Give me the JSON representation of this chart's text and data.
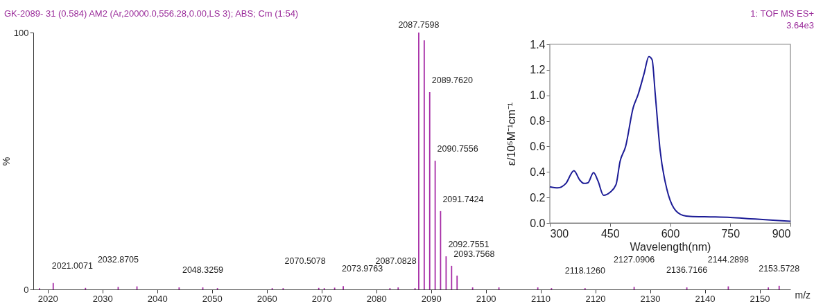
{
  "chart_data": [
    {
      "type": "bar",
      "title": "GK-2089- 31 (0.584) AM2 (Ar,20000.0,556.28,0.00,LS 3); ABS; Cm (1:54)",
      "xlabel": "m/z",
      "ylabel": "%",
      "color": "#a62ca6",
      "x": [
        2018.5,
        2021.0071,
        2026.9,
        2032.8705,
        2036.3,
        2044.0,
        2048.3259,
        2051.0,
        2061.0,
        2063.0,
        2069.5,
        2070.5078,
        2072.4,
        2073.9763,
        2082.5,
        2084.0,
        2087.0828,
        2087.7598,
        2088.76,
        2089.762,
        2090.7556,
        2091.7424,
        2092.7551,
        2093.7568,
        2094.76,
        2097.6,
        2102.4,
        2109.5,
        2112.0,
        2118.126,
        2127.0906,
        2136.7166,
        2144.2898,
        2151.6,
        2153.5728
      ],
      "values": [
        0.5,
        2.5,
        0.6,
        1.0,
        1.2,
        0.8,
        0.8,
        0.5,
        0.5,
        0.5,
        0.6,
        0.5,
        0.7,
        1.3,
        0.5,
        0.8,
        0.5,
        100,
        97.0,
        76.8,
        50.1,
        30.5,
        12.9,
        9.2,
        5.4,
        0.8,
        0.8,
        0.8,
        0.5,
        0.5,
        1.0,
        0.8,
        1.2,
        0.8,
        1.4
      ],
      "xlim": [
        2018,
        2155
      ],
      "xticks": [
        2020,
        2030,
        2040,
        2050,
        2060,
        2070,
        2080,
        2090,
        2100,
        2110,
        2120,
        2130,
        2140,
        2150
      ],
      "ylim": [
        0,
        100
      ],
      "yticks": [
        0,
        100
      ],
      "grid": false,
      "annotations": [
        "1: TOF MS ES+",
        "3.64e3",
        {
          "text": "2021.0071",
          "x": 2021.0071,
          "y": 2.5
        },
        {
          "text": "2032.8705",
          "x": 2032.8705,
          "y": 1.0
        },
        {
          "text": "2048.3259",
          "x": 2048.3259,
          "y": 0.8
        },
        {
          "text": "2070.5078",
          "x": 2070.5078,
          "y": 0.5
        },
        {
          "text": "2073.9763",
          "x": 2073.9763,
          "y": 1.3
        },
        {
          "text": "2087.0828",
          "x": 2087.0828,
          "y": 0.5
        },
        {
          "text": "2087.7598",
          "x": 2087.7598,
          "y": 100
        },
        {
          "text": "2089.7620",
          "x": 2089.762,
          "y": 76.8
        },
        {
          "text": "2090.7556",
          "x": 2090.7556,
          "y": 50.1
        },
        {
          "text": "2091.7424",
          "x": 2091.7424,
          "y": 30.5
        },
        {
          "text": "2092.7551",
          "x": 2092.7551,
          "y": 12.9
        },
        {
          "text": "2093.7568",
          "x": 2093.7568,
          "y": 9.2
        },
        {
          "text": "2118.1260",
          "x": 2118.126,
          "y": 0.5
        },
        {
          "text": "2127.0906",
          "x": 2127.0906,
          "y": 1.0
        },
        {
          "text": "2136.7166",
          "x": 2136.7166,
          "y": 0.8
        },
        {
          "text": "2144.2898",
          "x": 2144.2898,
          "y": 1.2
        },
        {
          "text": "2153.5728",
          "x": 2153.5728,
          "y": 1.4
        }
      ]
    },
    {
      "type": "line",
      "xlabel": "Wavelength(nm)",
      "ylabel": "ε/10⁵M⁻¹cm⁻¹",
      "grid": false,
      "series": [
        {
          "color": "#1c1c96",
          "x": [
            300,
            320,
            340,
            360,
            375,
            385,
            395,
            409,
            420,
            434,
            450,
            465,
            475,
            489,
            508,
            520,
            535,
            547,
            555,
            563,
            575,
            592,
            609,
            632,
            650,
            700,
            750,
            800,
            850,
            900
          ],
          "values": [
            0.284,
            0.275,
            0.31,
            0.41,
            0.335,
            0.31,
            0.315,
            0.395,
            0.33,
            0.217,
            0.24,
            0.3,
            0.48,
            0.6,
            0.905,
            1.005,
            1.17,
            1.304,
            1.28,
            1.005,
            0.57,
            0.263,
            0.118,
            0.06,
            0.052,
            0.048,
            0.043,
            0.033,
            0.023,
            0.014
          ]
        }
      ],
      "xlim": [
        300,
        900
      ],
      "xticks": [
        300,
        450,
        600,
        750,
        900
      ],
      "ylim": [
        0,
        1.4
      ],
      "yticks": [
        {
          "value": 0,
          "label": "0.0"
        },
        {
          "value": 0.2,
          "label": "0.2"
        },
        {
          "value": 0.4,
          "label": "0.4"
        },
        {
          "value": 0.6,
          "label": "0.6"
        },
        {
          "value": 0.8,
          "label": "0.8"
        },
        {
          "value": 1.0,
          "label": "1.0"
        },
        {
          "value": 1.2,
          "label": "1.2"
        },
        {
          "value": 1.4,
          "label": "1.4"
        }
      ]
    }
  ]
}
